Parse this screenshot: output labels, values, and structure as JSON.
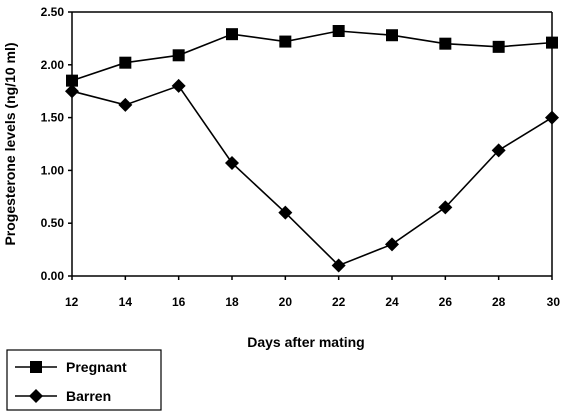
{
  "chart_data": {
    "type": "line",
    "title": "",
    "xlabel": "Days after mating",
    "ylabel": "Progesterone levels (ng/10 ml)",
    "x": [
      12,
      14,
      16,
      18,
      20,
      22,
      24,
      26,
      28,
      30
    ],
    "x_tick_labels": [
      "12",
      "14",
      "16",
      "18",
      "20",
      "22",
      "24",
      "26",
      "28",
      "30"
    ],
    "ylim": [
      0,
      2.5
    ],
    "y_ticks": [
      0,
      0.5,
      1.0,
      1.5,
      2.0,
      2.5
    ],
    "y_tick_labels": [
      "0.00",
      "0.50",
      "1.00",
      "1.50",
      "2.00",
      "2.50"
    ],
    "grid": false,
    "legend_position": "bottom-left, outside plot",
    "series": [
      {
        "name": "Pregnant",
        "marker": "square",
        "color": "#000000",
        "values": [
          1.85,
          2.02,
          2.09,
          2.29,
          2.22,
          2.32,
          2.28,
          2.2,
          2.17,
          2.21
        ]
      },
      {
        "name": "Barren",
        "marker": "diamond",
        "color": "#000000",
        "values": [
          1.75,
          1.62,
          1.8,
          1.07,
          0.6,
          0.1,
          0.3,
          0.65,
          1.19,
          1.5
        ]
      }
    ]
  }
}
